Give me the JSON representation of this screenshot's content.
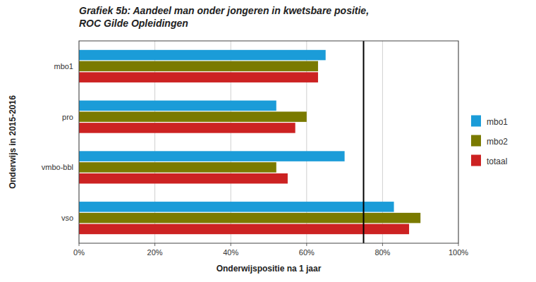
{
  "chart_data": {
    "type": "bar",
    "orientation": "horizontal",
    "title": "Grafiek 5b: Aandeel man onder jongeren in kwetsbare positie,",
    "subtitle": "ROC Gilde Opleidingen",
    "x_label": "Onderwijspositie na 1 jaar",
    "y_label": "Onderwijs in 2015-2016",
    "categories": [
      "vso",
      "vmbo-bbl",
      "pro",
      "mbo1"
    ],
    "series": [
      {
        "name": "mbo1",
        "color": "#1B9CD8",
        "values": [
          83,
          70,
          52,
          65
        ]
      },
      {
        "name": "mbo2",
        "color": "#7A7A00",
        "values": [
          90,
          52,
          60,
          63
        ]
      },
      {
        "name": "totaal",
        "color": "#CC2222",
        "values": [
          87,
          55,
          57,
          63
        ]
      }
    ],
    "xlim": [
      0,
      100
    ],
    "xticks": [
      {
        "value": 0,
        "label": "0%"
      },
      {
        "value": 20,
        "label": "20%"
      },
      {
        "value": 40,
        "label": "40%"
      },
      {
        "value": 60,
        "label": "60%"
      },
      {
        "value": 80,
        "label": "80%"
      },
      {
        "value": 100,
        "label": "100%"
      }
    ],
    "reference_line": 75,
    "grid": true,
    "legend": "right"
  }
}
